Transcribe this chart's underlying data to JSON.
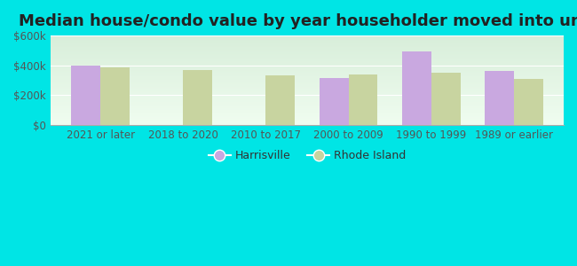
{
  "title": "Median house/condo value by year householder moved into unit",
  "categories": [
    "2021 or later",
    "2018 to 2020",
    "2010 to 2017",
    "2000 to 2009",
    "1990 to 1999",
    "1989 or earlier"
  ],
  "harrisville": [
    400000,
    0,
    0,
    315000,
    495000,
    365000
  ],
  "rhode_island": [
    385000,
    370000,
    335000,
    340000,
    350000,
    308000
  ],
  "harrisville_color": "#c9a8e0",
  "rhode_island_color": "#c8d4a0",
  "background_color": "#00e5e5",
  "plot_bg_top": "#d8eeda",
  "plot_bg_bottom": "#f0fdf0",
  "ylim": [
    0,
    600000
  ],
  "yticks": [
    0,
    200000,
    400000,
    600000
  ],
  "ytick_labels": [
    "$0",
    "$200k",
    "$400k",
    "$600k"
  ],
  "bar_width": 0.35,
  "legend_harrisville": "Harrisville",
  "legend_rhode_island": "Rhode Island",
  "title_fontsize": 13,
  "tick_fontsize": 8.5,
  "legend_fontsize": 9,
  "ytick_color": "#555555",
  "xtick_color": "#555555"
}
